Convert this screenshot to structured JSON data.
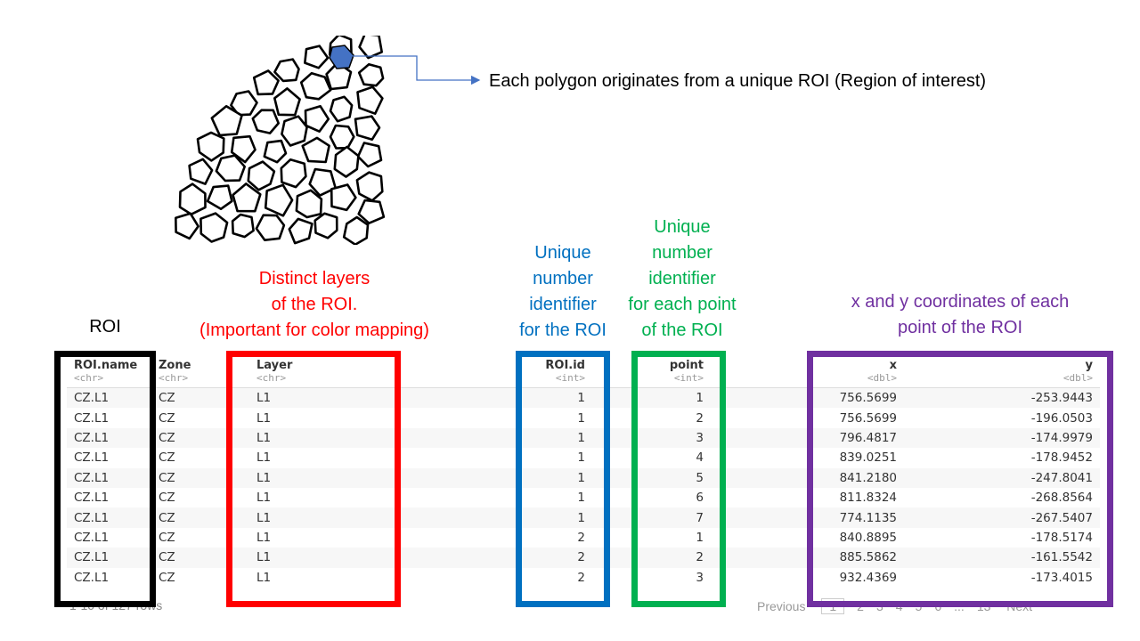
{
  "callout": {
    "text": "Each polygon originates from a unique ROI (Region of interest)"
  },
  "annotations": {
    "roi": {
      "lines": [
        "ROI"
      ],
      "color": "#000000"
    },
    "layers": {
      "lines": [
        "Distinct layers",
        "of the ROI.",
        "(Important for color mapping)"
      ],
      "color": "#ff0000"
    },
    "roi_id": {
      "lines": [
        "Unique",
        "number",
        "identifier",
        "for the ROI"
      ],
      "color": "#0070c0"
    },
    "point": {
      "lines": [
        "Unique",
        "number",
        "identifier",
        "for each point",
        "of the ROI"
      ],
      "color": "#00b050"
    },
    "coords": {
      "lines": [
        "x and y coordinates of each",
        "point of the ROI"
      ],
      "color": "#7030a0"
    }
  },
  "table": {
    "columns": [
      {
        "name": "ROI.name",
        "type": "<chr>"
      },
      {
        "name": "Zone",
        "type": "<chr>"
      },
      {
        "name": "Layer",
        "type": "<chr>"
      },
      {
        "name": "ROI.id",
        "type": "<int>"
      },
      {
        "name": "point",
        "type": "<int>"
      },
      {
        "name": "x",
        "type": "<dbl>"
      },
      {
        "name": "y",
        "type": "<dbl>"
      }
    ],
    "rows": [
      [
        "CZ.L1",
        "CZ",
        "L1",
        "1",
        "1",
        "756.5699",
        "-253.9443"
      ],
      [
        "CZ.L1",
        "CZ",
        "L1",
        "1",
        "2",
        "756.5699",
        "-196.0503"
      ],
      [
        "CZ.L1",
        "CZ",
        "L1",
        "1",
        "3",
        "796.4817",
        "-174.9979"
      ],
      [
        "CZ.L1",
        "CZ",
        "L1",
        "1",
        "4",
        "839.0251",
        "-178.9452"
      ],
      [
        "CZ.L1",
        "CZ",
        "L1",
        "1",
        "5",
        "841.2180",
        "-247.8041"
      ],
      [
        "CZ.L1",
        "CZ",
        "L1",
        "1",
        "6",
        "811.8324",
        "-268.8564"
      ],
      [
        "CZ.L1",
        "CZ",
        "L1",
        "1",
        "7",
        "774.1135",
        "-267.5407"
      ],
      [
        "CZ.L1",
        "CZ",
        "L1",
        "2",
        "1",
        "840.8895",
        "-178.5174"
      ],
      [
        "CZ.L1",
        "CZ",
        "L1",
        "2",
        "2",
        "885.5862",
        "-161.5542"
      ],
      [
        "CZ.L1",
        "CZ",
        "L1",
        "2",
        "3",
        "932.4369",
        "-173.4015"
      ]
    ]
  },
  "pagination": {
    "rows_info": "1-10 of 127 rows",
    "previous": "Previous",
    "pages": [
      "1",
      "2",
      "3",
      "4",
      "5",
      "6",
      "...",
      "13"
    ],
    "next": "Next"
  },
  "colors": {
    "highlighted_polygon": "#4472c4",
    "callout_line": "#4472c4",
    "box_roi": "#000000",
    "box_layers": "#ff0000",
    "box_roi_id": "#0070c0",
    "box_point": "#00b050",
    "box_coords": "#7030a0"
  }
}
